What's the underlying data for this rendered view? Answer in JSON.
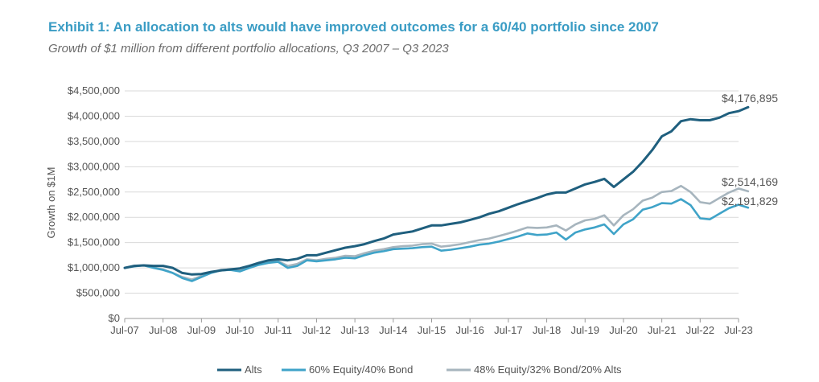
{
  "title": "Exhibit 1: An allocation to alts would have improved outcomes for a 60/40 portfolio since 2007",
  "subtitle": "Growth of $1 million from different portfolio allocations, Q3 2007 – Q3 2023",
  "chart_data": {
    "type": "line",
    "title": "Exhibit 1: An allocation to alts would have improved outcomes for a 60/40 portfolio since 2007",
    "subtitle": "Growth of $1 million from different portfolio allocations, Q3 2007 – Q3 2023",
    "xlabel": "",
    "ylabel": "Growth on $1M",
    "ylim": [
      0,
      4500000
    ],
    "y_ticks": [
      0,
      500000,
      1000000,
      1500000,
      2000000,
      2500000,
      3000000,
      3500000,
      4000000,
      4500000
    ],
    "y_tick_labels": [
      "$0",
      "$500,000",
      "$1,000,000",
      "$1,500,000",
      "$2,000,000",
      "$2,500,000",
      "$3,000,000",
      "$3,500,000",
      "$4,000,000",
      "$4,500,000"
    ],
    "x_tick_labels": [
      "Jul-07",
      "Jul-08",
      "Jul-09",
      "Jul-10",
      "Jul-11",
      "Jul-12",
      "Jul-13",
      "Jul-14",
      "Jul-15",
      "Jul-16",
      "Jul-17",
      "Jul-18",
      "Jul-19",
      "Jul-20",
      "Jul-21",
      "Jul-22",
      "Jul-23"
    ],
    "x_start": "Q3 2007",
    "x_frequency": "quarterly",
    "grid": true,
    "legend_position": "bottom",
    "series": [
      {
        "name": "Alts",
        "color": "#1f5f7e",
        "end_label": "$4,176,895",
        "values": [
          1000000,
          1040000,
          1050000,
          1040000,
          1040000,
          1000000,
          900000,
          870000,
          880000,
          920000,
          950000,
          970000,
          990000,
          1040000,
          1100000,
          1150000,
          1170000,
          1150000,
          1180000,
          1250000,
          1250000,
          1300000,
          1350000,
          1400000,
          1430000,
          1470000,
          1530000,
          1580000,
          1660000,
          1690000,
          1720000,
          1780000,
          1840000,
          1840000,
          1870000,
          1900000,
          1950000,
          2000000,
          2070000,
          2120000,
          2190000,
          2260000,
          2320000,
          2380000,
          2450000,
          2490000,
          2490000,
          2570000,
          2650000,
          2700000,
          2760000,
          2600000,
          2750000,
          2900000,
          3100000,
          3330000,
          3600000,
          3700000,
          3900000,
          3940000,
          3920000,
          3920000,
          3970000,
          4060000,
          4100000,
          4176895
        ]
      },
      {
        "name": "60% Equity/40% Bond",
        "color": "#3fa3c8",
        "end_label": "$2,191,829",
        "values": [
          1000000,
          1030000,
          1050000,
          1000000,
          960000,
          900000,
          800000,
          740000,
          820000,
          900000,
          950000,
          960000,
          930000,
          1000000,
          1060000,
          1100000,
          1120000,
          1000000,
          1040000,
          1150000,
          1130000,
          1150000,
          1170000,
          1200000,
          1190000,
          1250000,
          1300000,
          1330000,
          1370000,
          1380000,
          1390000,
          1410000,
          1420000,
          1340000,
          1360000,
          1390000,
          1420000,
          1460000,
          1480000,
          1520000,
          1570000,
          1620000,
          1680000,
          1650000,
          1660000,
          1700000,
          1560000,
          1700000,
          1760000,
          1800000,
          1860000,
          1670000,
          1860000,
          1960000,
          2150000,
          2200000,
          2280000,
          2270000,
          2360000,
          2240000,
          1980000,
          1960000,
          2070000,
          2180000,
          2250000,
          2191829
        ]
      },
      {
        "name": "48% Equity/32% Bond/20% Alts",
        "color": "#a7b5be",
        "end_label": "$2,514,169",
        "values": [
          1000000,
          1040000,
          1050000,
          1010000,
          970000,
          900000,
          820000,
          770000,
          840000,
          910000,
          960000,
          970000,
          950000,
          1010000,
          1070000,
          1110000,
          1130000,
          1040000,
          1080000,
          1170000,
          1150000,
          1180000,
          1200000,
          1240000,
          1230000,
          1290000,
          1340000,
          1370000,
          1410000,
          1430000,
          1440000,
          1470000,
          1480000,
          1420000,
          1440000,
          1470000,
          1510000,
          1550000,
          1580000,
          1630000,
          1680000,
          1740000,
          1800000,
          1790000,
          1800000,
          1840000,
          1740000,
          1860000,
          1940000,
          1970000,
          2040000,
          1840000,
          2040000,
          2160000,
          2330000,
          2390000,
          2500000,
          2520000,
          2620000,
          2500000,
          2300000,
          2270000,
          2380000,
          2490000,
          2570000,
          2514169
        ]
      }
    ]
  }
}
